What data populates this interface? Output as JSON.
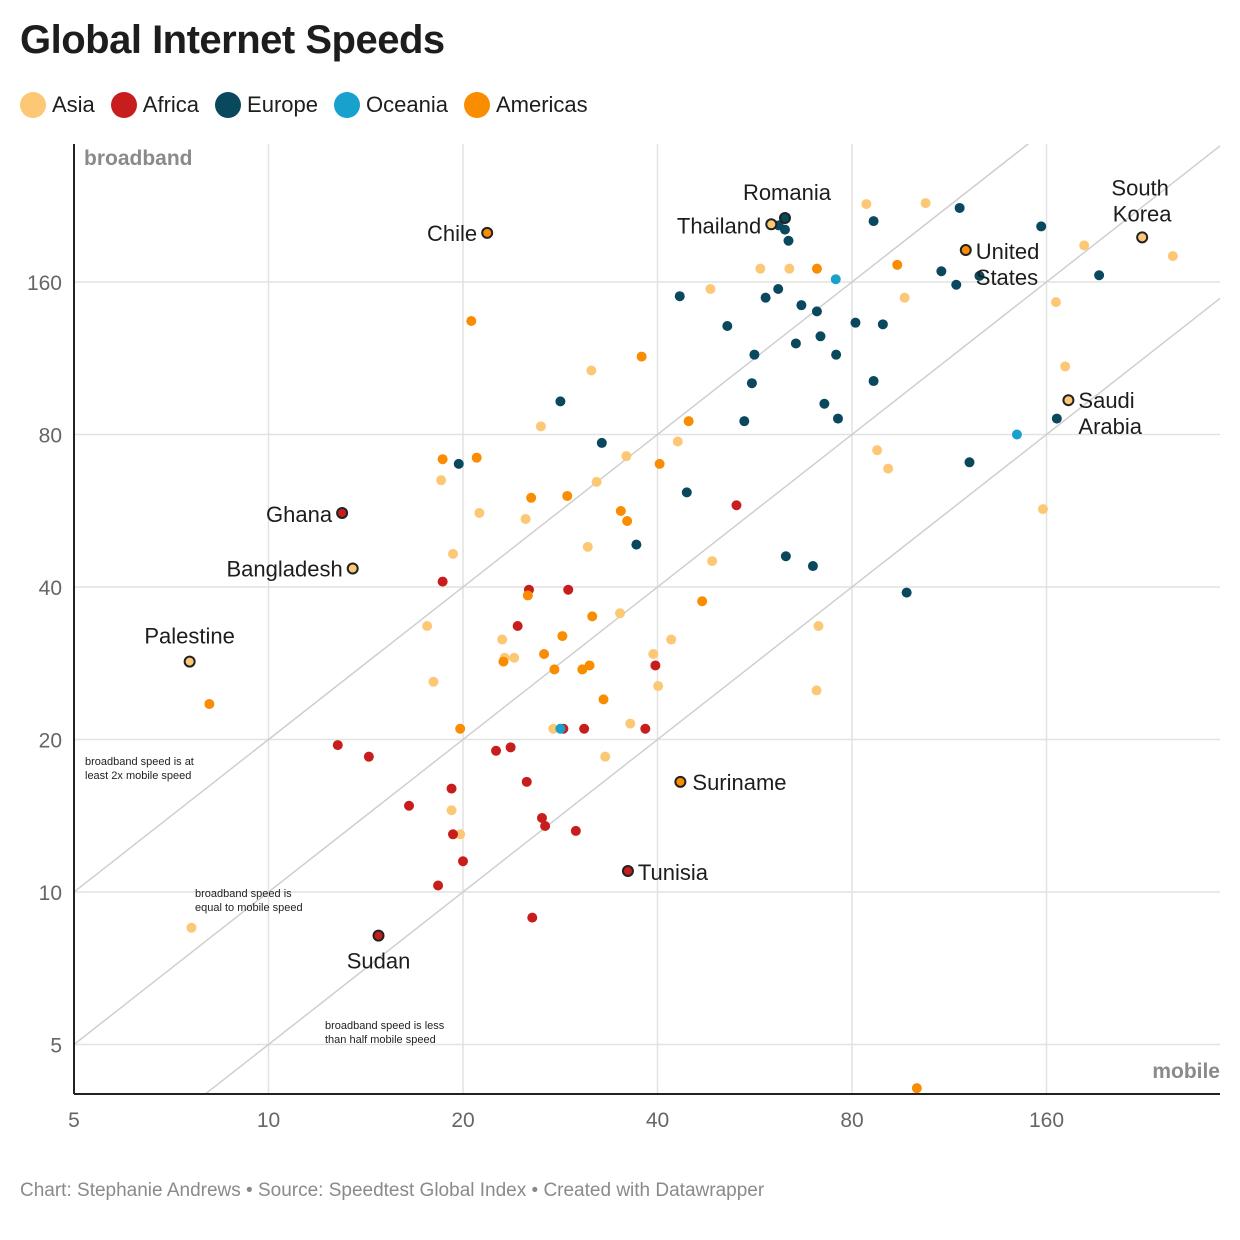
{
  "title": "Global Internet Speeds",
  "footer": "Chart: Stephanie Andrews • Source: Speedtest Global Index • Created with Datawrapper",
  "legend": [
    {
      "name": "Asia",
      "color": "#fdc875"
    },
    {
      "name": "Africa",
      "color": "#c71e1d"
    },
    {
      "name": "Europe",
      "color": "#09485d"
    },
    {
      "name": "Oceania",
      "color": "#18a1cd"
    },
    {
      "name": "Americas",
      "color": "#fa8c00"
    }
  ],
  "chart_data": {
    "type": "scatter",
    "xlabel": "mobile",
    "ylabel": "broadband",
    "x_scale": "log2",
    "y_scale": "log2",
    "xlim": [
      5,
      320
    ],
    "ylim": [
      4,
      244
    ],
    "x_ticks": [
      5,
      10,
      20,
      40,
      80,
      160
    ],
    "y_ticks": [
      5,
      10,
      20,
      40,
      80,
      160
    ],
    "reference_lines": [
      {
        "label": "broadband speed is at least 2x mobile speed",
        "ratio": 2
      },
      {
        "label": "broadband speed is equal to mobile speed",
        "ratio": 1
      },
      {
        "label": "broadband speed is less than half mobile speed",
        "ratio": 0.5
      }
    ],
    "series": [
      {
        "name": "Asia",
        "color": "#fdc875",
        "points": [
          [
            7.6,
            8.5
          ],
          [
            17.6,
            33.5
          ],
          [
            18.0,
            26.0
          ],
          [
            19.2,
            14.5
          ],
          [
            19.8,
            13.0
          ],
          [
            19.3,
            46.5
          ],
          [
            18.5,
            65.0
          ],
          [
            21.2,
            56.0
          ],
          [
            23.0,
            31.5
          ],
          [
            24.0,
            29.0
          ],
          [
            23.2,
            29.0
          ],
          [
            25.0,
            54.5
          ],
          [
            26.4,
            83.0
          ],
          [
            27.6,
            21.0
          ],
          [
            31.2,
            48.0
          ],
          [
            31.6,
            107.0
          ],
          [
            32.2,
            64.5
          ],
          [
            33.2,
            18.5
          ],
          [
            35.0,
            35.5
          ],
          [
            35.8,
            72.5
          ],
          [
            36.3,
            21.5
          ],
          [
            39.4,
            29.5
          ],
          [
            40.1,
            25.5
          ],
          [
            42.0,
            31.5
          ],
          [
            43.0,
            77.5
          ],
          [
            48.6,
            45.0
          ],
          [
            48.3,
            155.0
          ],
          [
            57.7,
            170.0
          ],
          [
            64.0,
            170.0
          ],
          [
            71.0,
            33.5
          ],
          [
            70.5,
            25.0
          ],
          [
            84.2,
            228.0
          ],
          [
            87.5,
            74.5
          ],
          [
            91.0,
            68.5
          ],
          [
            96.5,
            149.0
          ],
          [
            104.0,
            229.0
          ],
          [
            158.0,
            57.0
          ],
          [
            165.5,
            146.0
          ],
          [
            171.0,
            109.0
          ],
          [
            183.0,
            189.0
          ],
          [
            251.0,
            180.0
          ]
        ]
      },
      {
        "name": "Africa",
        "color": "#c71e1d",
        "points": [
          [
            12.8,
            19.5
          ],
          [
            14.3,
            18.5
          ],
          [
            16.5,
            14.8
          ],
          [
            18.3,
            10.3
          ],
          [
            18.6,
            41.0
          ],
          [
            19.2,
            16.0
          ],
          [
            19.3,
            13.0
          ],
          [
            20.0,
            11.5
          ],
          [
            22.5,
            19.0
          ],
          [
            23.7,
            19.3
          ],
          [
            24.3,
            33.5
          ],
          [
            25.1,
            16.5
          ],
          [
            25.3,
            39.5
          ],
          [
            25.6,
            8.9
          ],
          [
            26.5,
            14.0
          ],
          [
            26.8,
            13.5
          ],
          [
            28.6,
            21.0
          ],
          [
            29.1,
            39.5
          ],
          [
            29.9,
            13.2
          ],
          [
            30.8,
            21.0
          ],
          [
            38.3,
            21.0
          ],
          [
            39.7,
            28.0
          ],
          [
            53.0,
            58.0
          ]
        ]
      },
      {
        "name": "Europe",
        "color": "#09485d",
        "points": [
          [
            19.7,
            70.0
          ],
          [
            28.3,
            93.0
          ],
          [
            32.8,
            77.0
          ],
          [
            37.1,
            48.5
          ],
          [
            44.4,
            61.5
          ],
          [
            43.3,
            150.0
          ],
          [
            51.3,
            131.0
          ],
          [
            54.5,
            85.0
          ],
          [
            56.0,
            101.0
          ],
          [
            56.5,
            115.0
          ],
          [
            58.8,
            149.0
          ],
          [
            61.6,
            207.0
          ],
          [
            61.5,
            155.0
          ],
          [
            63.0,
            203.0
          ],
          [
            63.2,
            46.0
          ],
          [
            63.8,
            193.0
          ],
          [
            65.5,
            121.0
          ],
          [
            66.8,
            144.0
          ],
          [
            70.6,
            140.0
          ],
          [
            69.6,
            44.0
          ],
          [
            71.5,
            125.0
          ],
          [
            72.5,
            92.0
          ],
          [
            75.6,
            115.0
          ],
          [
            76.1,
            86.0
          ],
          [
            81.0,
            133.0
          ],
          [
            86.4,
            211.0
          ],
          [
            86.4,
            102.0
          ],
          [
            89.3,
            132.0
          ],
          [
            97.2,
            39.0
          ],
          [
            110.0,
            168.0
          ],
          [
            116.0,
            158.0
          ],
          [
            117.4,
            224.0
          ],
          [
            121.6,
            70.5
          ],
          [
            126.0,
            164.5
          ],
          [
            157.0,
            206.0
          ],
          [
            166.0,
            86.0
          ],
          [
            193.0,
            165.0
          ]
        ]
      },
      {
        "name": "Oceania",
        "color": "#18a1cd",
        "points": [
          [
            28.3,
            21.0
          ],
          [
            75.5,
            162.0
          ],
          [
            144.0,
            80.0
          ]
        ]
      },
      {
        "name": "Americas",
        "color": "#fa8c00",
        "points": [
          [
            8.1,
            23.5
          ],
          [
            18.6,
            71.5
          ],
          [
            19.8,
            21.0
          ],
          [
            20.6,
            134.0
          ],
          [
            21.0,
            72.0
          ],
          [
            23.1,
            28.5
          ],
          [
            25.2,
            38.5
          ],
          [
            25.5,
            60.0
          ],
          [
            26.7,
            29.5
          ],
          [
            27.7,
            27.5
          ],
          [
            28.5,
            32.0
          ],
          [
            29.0,
            60.5
          ],
          [
            30.6,
            27.5
          ],
          [
            31.4,
            28.0
          ],
          [
            31.7,
            35.0
          ],
          [
            33.0,
            24.0
          ],
          [
            35.1,
            56.5
          ],
          [
            35.9,
            54.0
          ],
          [
            37.8,
            114.0
          ],
          [
            40.3,
            70.0
          ],
          [
            44.7,
            85.0
          ],
          [
            46.9,
            37.5
          ],
          [
            70.6,
            170.0
          ],
          [
            94.0,
            173.0
          ],
          [
            100.8,
            4.1
          ]
        ]
      }
    ],
    "annotations": [
      {
        "label": "Chile",
        "x": 21.8,
        "y": 200.0,
        "color": "#fa8c00"
      },
      {
        "label": "Romania",
        "x": 63.0,
        "y": 214.0,
        "color": "#09485d"
      },
      {
        "label": "Thailand",
        "x": 60.0,
        "y": 208.0,
        "color": "#fdc875"
      },
      {
        "label": "United States",
        "x": 120.0,
        "y": 185.0,
        "color": "#fa8c00"
      },
      {
        "label": "South Korea",
        "x": 225.0,
        "y": 196.0,
        "color": "#fdc875"
      },
      {
        "label": "Ghana",
        "x": 13.0,
        "y": 56.0,
        "color": "#c71e1d"
      },
      {
        "label": "Bangladesh",
        "x": 13.5,
        "y": 43.5,
        "color": "#fdc875"
      },
      {
        "label": "Palestine",
        "x": 7.55,
        "y": 28.5,
        "color": "#fdc875"
      },
      {
        "label": "Saudi Arabia",
        "x": 173.0,
        "y": 93.5,
        "color": "#fdc875"
      },
      {
        "label": "Suriname",
        "x": 43.4,
        "y": 16.5,
        "color": "#fa8c00"
      },
      {
        "label": "Tunisia",
        "x": 36.0,
        "y": 11.0,
        "color": "#c71e1d"
      },
      {
        "label": "Sudan",
        "x": 14.8,
        "y": 8.2,
        "color": "#c71e1d"
      }
    ]
  }
}
